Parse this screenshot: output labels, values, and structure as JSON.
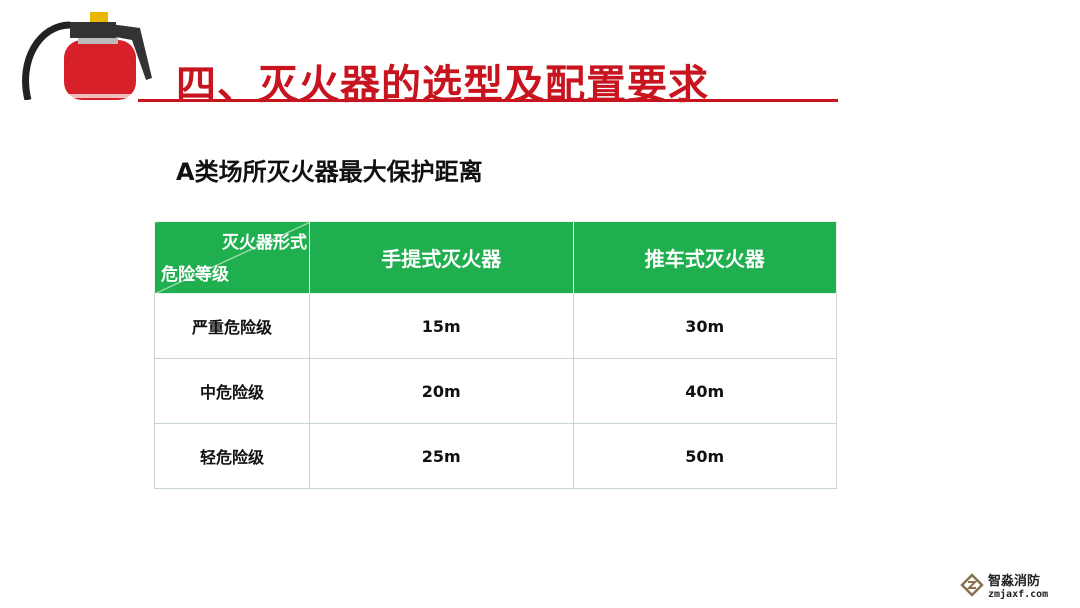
{
  "title": "四、灭火器的选型及配置要求",
  "subtitle": "A类场所灭火器最大保护距离",
  "colors": {
    "title": "#c8141e",
    "header_bg": "#1faf4f"
  },
  "table": {
    "corner_top": "灭火器形式",
    "corner_bottom": "危险等级",
    "columns": [
      "手提式灭火器",
      "推车式灭火器"
    ],
    "rows": [
      {
        "level": "严重危险级",
        "values": [
          "15m",
          "30m"
        ]
      },
      {
        "level": "中危险级",
        "values": [
          "20m",
          "40m"
        ]
      },
      {
        "level": "轻危险级",
        "values": [
          "25m",
          "50m"
        ]
      }
    ]
  },
  "watermark": {
    "name": "智淼消防",
    "url": "zmjaxf.com"
  }
}
